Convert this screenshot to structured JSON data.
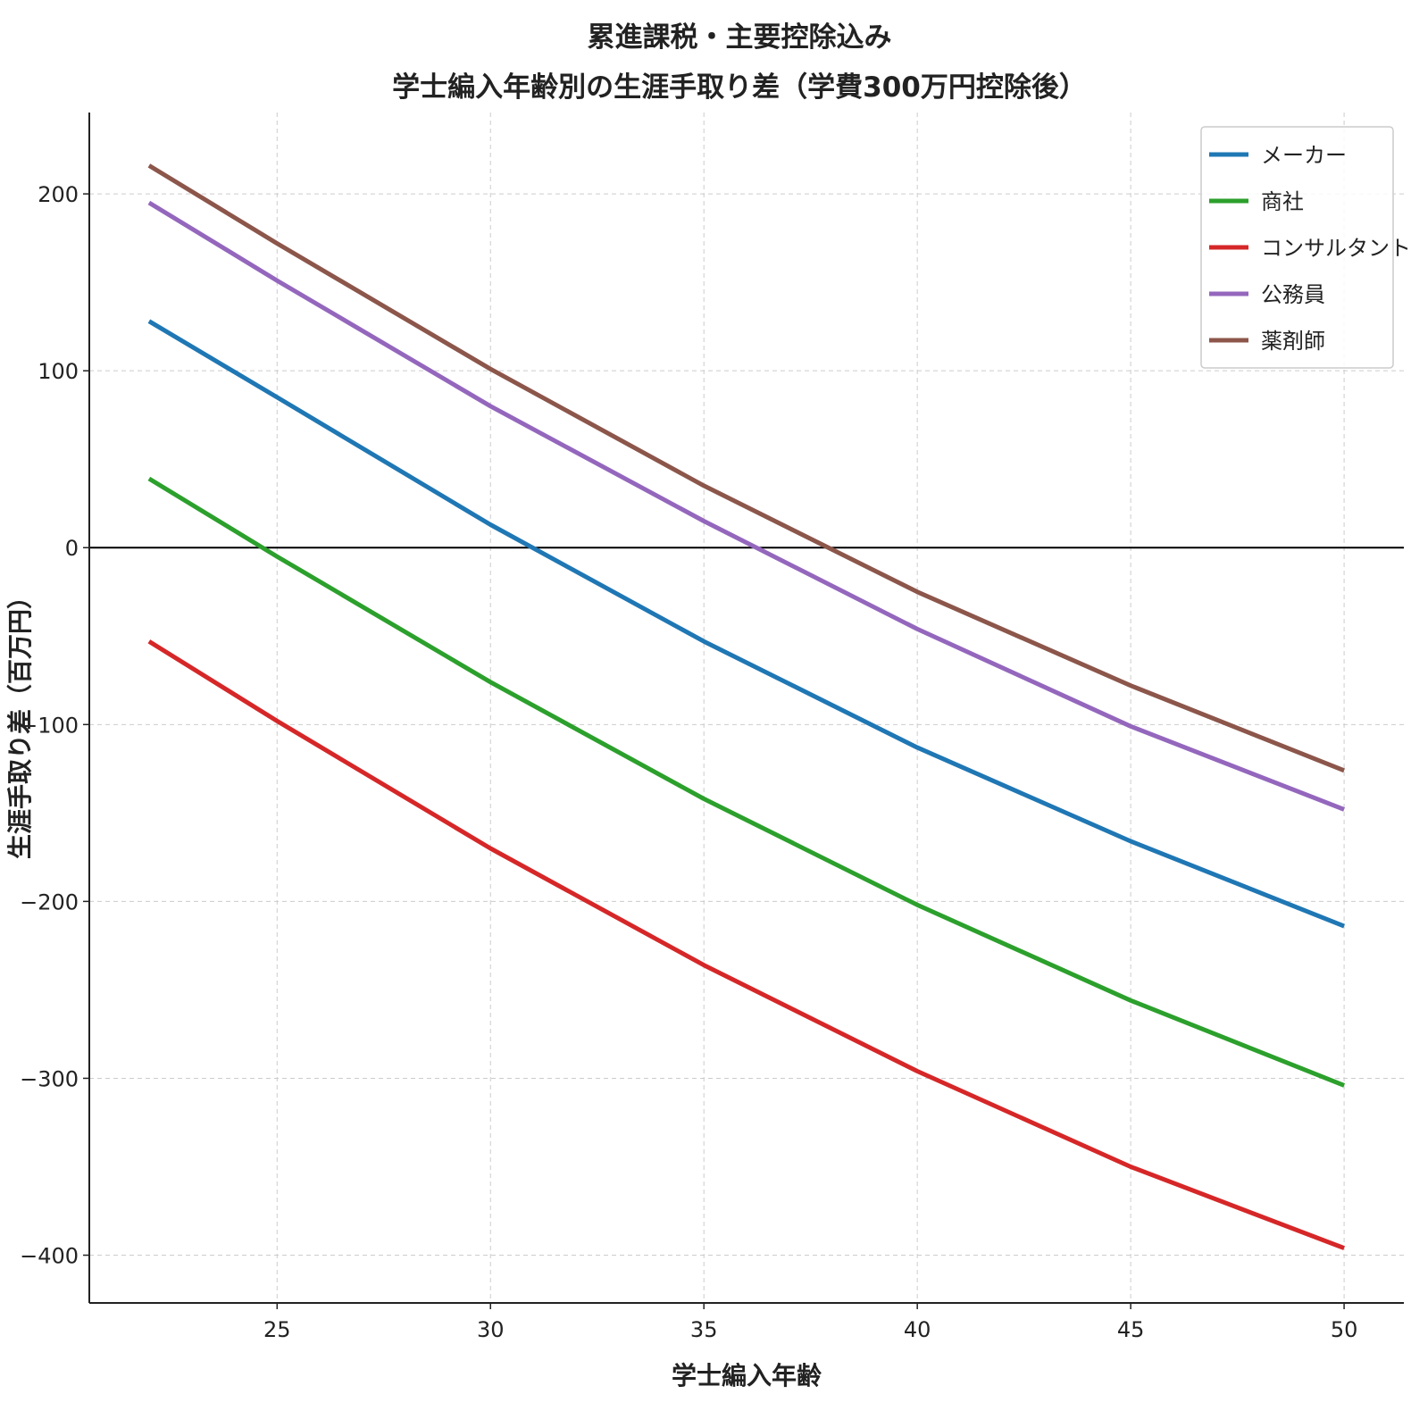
{
  "chart_data": {
    "type": "line",
    "title_lines": [
      "累進課税・主要控除込み",
      "学士編入年齢別の生涯手取り差（学費300万円控除後）"
    ],
    "xlabel": "学士編入年齢",
    "ylabel": "生涯手取り差（百万円）",
    "xlim": [
      20.6,
      51.4
    ],
    "ylim": [
      -427,
      246
    ],
    "xticks": [
      25,
      30,
      35,
      40,
      45,
      50
    ],
    "yticks": [
      -400,
      -300,
      -200,
      -100,
      0,
      100,
      200
    ],
    "xtick_labels": [
      "25",
      "30",
      "35",
      "40",
      "45",
      "50"
    ],
    "ytick_labels": [
      "−400",
      "−300",
      "−200",
      "−100",
      "0",
      "100",
      "200"
    ],
    "grid": true,
    "zero_line": true,
    "legend_position": "top-right",
    "x": [
      22,
      25,
      30,
      35,
      40,
      45,
      50
    ],
    "series": [
      {
        "name": "メーカー",
        "color": "#1f77b4",
        "values": [
          128,
          85,
          13,
          -53,
          -113,
          -166,
          -214
        ]
      },
      {
        "name": "商社",
        "color": "#2ca02c",
        "values": [
          39,
          -5,
          -76,
          -142,
          -202,
          -256,
          -304
        ]
      },
      {
        "name": "コンサルタント",
        "color": "#d62728",
        "values": [
          -53,
          -98,
          -170,
          -236,
          -296,
          -350,
          -396
        ]
      },
      {
        "name": "公務員",
        "color": "#9467bd",
        "values": [
          195,
          151,
          80,
          15,
          -46,
          -101,
          -148
        ]
      },
      {
        "name": "薬剤師",
        "color": "#8c564b",
        "values": [
          216,
          172,
          101,
          35,
          -25,
          -78,
          -126
        ]
      }
    ]
  }
}
